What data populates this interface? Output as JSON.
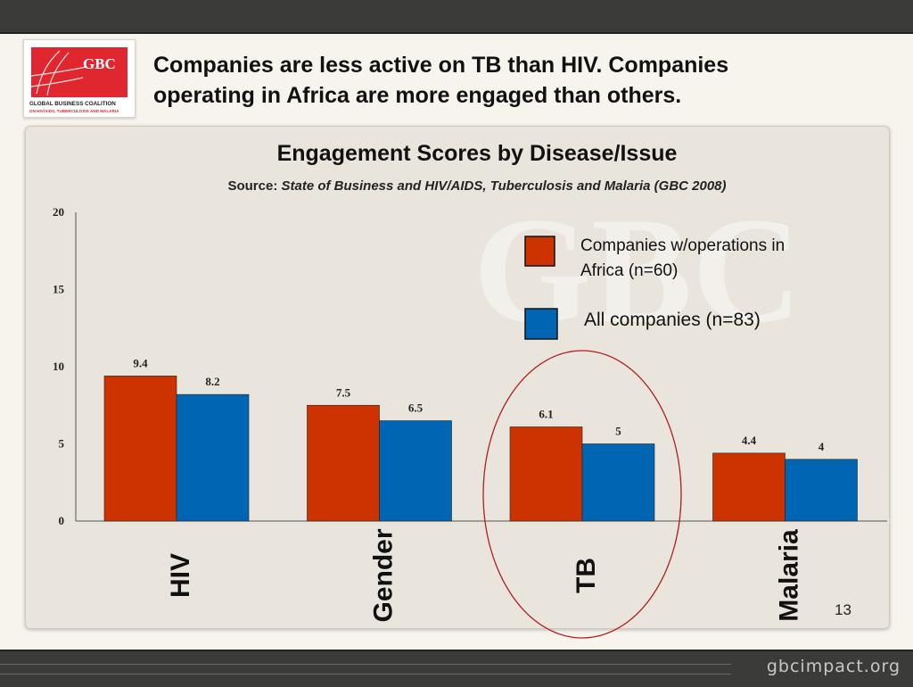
{
  "slide": {
    "headline_line1": "Companies are less active on TB than HIV. Companies",
    "headline_line2": "operating in Africa are more engaged than others.",
    "page_number": "13",
    "footer_site": "gbcimpact.org"
  },
  "logo": {
    "short": "GBC",
    "line1": "GLOBAL BUSINESS COALITION",
    "line2": "ON HIV/AIDS, TUBERCULOSIS AND MALARIA",
    "watermark": "GBC"
  },
  "colors": {
    "africa": "#cc3300",
    "all": "#0066b3",
    "circle": "#b01e1e",
    "brand_red": "#e0262f"
  },
  "chart_data": {
    "type": "bar",
    "title": "Engagement Scores by Disease/Issue",
    "subtitle_prefix": "Source:",
    "subtitle_source": "State of Business and HIV/AIDS, Tuberculosis and Malaria (GBC 2008)",
    "categories": [
      "HIV",
      "Gender",
      "TB",
      "Malaria"
    ],
    "series": [
      {
        "name": "Companies w/operations in Africa (n=60)",
        "legend_line1": "Companies w/operations in",
        "legend_line2": "Africa (n=60)",
        "values": [
          9.4,
          7.5,
          6.1,
          4.4
        ],
        "labels": [
          "9.4",
          "7.5",
          "6.1",
          "4.4"
        ],
        "color": "#cc3300"
      },
      {
        "name": "All companies (n=83)",
        "legend_line1": "All companies (n=83)",
        "legend_line2": "",
        "values": [
          8.2,
          6.5,
          5,
          4
        ],
        "labels": [
          "8.2",
          "6.5",
          "5",
          "4"
        ],
        "color": "#0066b3"
      }
    ],
    "yticks": [
      "0",
      "5",
      "10",
      "15",
      "20"
    ],
    "ylim": [
      0,
      20
    ],
    "grid": false,
    "legend_position": "top-right",
    "highlighted_category": "TB"
  }
}
